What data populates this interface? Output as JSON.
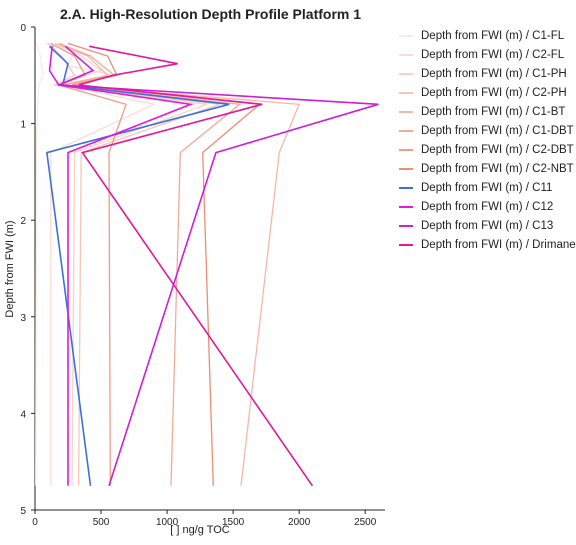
{
  "chart_data": {
    "type": "line",
    "title": "2.A. High-Resolution Depth Profile Platform 1",
    "xlabel": "[ ] ng/g TOC",
    "ylabel": "Depth from FWI (m)",
    "xlim": [
      0,
      2650
    ],
    "ylim": [
      5,
      0
    ],
    "x_ticks": [
      "0",
      "500",
      "1000",
      "1500",
      "2000",
      "2500"
    ],
    "y_ticks": [
      "0",
      "1",
      "2",
      "3",
      "4",
      "5"
    ],
    "grid": false,
    "legend_position": "right",
    "series": [
      {
        "name": "Depth from FWI (m) / C1-FL",
        "color": "#fde9e4",
        "points": [
          [
            10,
            0.17
          ],
          [
            40,
            0.3
          ],
          [
            60,
            0.5
          ],
          [
            30,
            0.6
          ],
          [
            20,
            0.8
          ],
          [
            10,
            1.3
          ],
          [
            5,
            4.75
          ]
        ]
      },
      {
        "name": "Depth from FWI (m) / C2-FL",
        "color": "#fbdcd4",
        "points": [
          [
            80,
            0.17
          ],
          [
            300,
            0.25
          ],
          [
            250,
            0.4
          ],
          [
            600,
            0.5
          ],
          [
            200,
            0.6
          ],
          [
            900,
            0.8
          ],
          [
            120,
            1.3
          ],
          [
            120,
            4.75
          ]
        ]
      },
      {
        "name": "Depth from FWI (m) / C1-PH",
        "color": "#f9d2c6",
        "points": [
          [
            200,
            0.17
          ],
          [
            350,
            0.3
          ],
          [
            500,
            0.45
          ],
          [
            150,
            0.6
          ],
          [
            1300,
            0.8
          ],
          [
            300,
            1.3
          ],
          [
            280,
            4.75
          ]
        ]
      },
      {
        "name": "Depth from FWI (m) / C2-PH",
        "color": "#f7c6b7",
        "points": [
          [
            100,
            0.17
          ],
          [
            200,
            0.3
          ],
          [
            300,
            0.5
          ],
          [
            150,
            0.6
          ],
          [
            1400,
            0.8
          ],
          [
            350,
            1.3
          ],
          [
            330,
            4.75
          ]
        ]
      },
      {
        "name": "Depth from FWI (m) / C1-BT",
        "color": "#f5b8a7",
        "points": [
          [
            150,
            0.17
          ],
          [
            400,
            0.3
          ],
          [
            550,
            0.5
          ],
          [
            200,
            0.6
          ],
          [
            2000,
            0.8
          ],
          [
            1850,
            1.3
          ],
          [
            1560,
            4.75
          ]
        ]
      },
      {
        "name": "Depth from FWI (m) / C1-DBT",
        "color": "#f2ab98",
        "points": [
          [
            180,
            0.17
          ],
          [
            420,
            0.3
          ],
          [
            600,
            0.5
          ],
          [
            220,
            0.6
          ],
          [
            1550,
            0.8
          ],
          [
            1100,
            1.3
          ],
          [
            1030,
            4.75
          ]
        ]
      },
      {
        "name": "Depth from FWI (m) / C2-DBT",
        "color": "#ef9c88",
        "points": [
          [
            120,
            0.17
          ],
          [
            300,
            0.3
          ],
          [
            380,
            0.5
          ],
          [
            180,
            0.6
          ],
          [
            690,
            0.8
          ],
          [
            560,
            1.3
          ],
          [
            570,
            4.75
          ]
        ]
      },
      {
        "name": "Depth from FWI (m) / C2-NBT",
        "color": "#ec8d78",
        "points": [
          [
            250,
            0.17
          ],
          [
            550,
            0.3
          ],
          [
            620,
            0.5
          ],
          [
            280,
            0.6
          ],
          [
            1700,
            0.8
          ],
          [
            1270,
            1.3
          ],
          [
            1350,
            4.75
          ]
        ]
      },
      {
        "name": "Depth from FWI (m) / C11",
        "color": "#3b6fe0",
        "points": [
          [
            110,
            0.2
          ],
          [
            250,
            0.38
          ],
          [
            210,
            0.6
          ],
          [
            1470,
            0.8
          ],
          [
            90,
            1.3
          ],
          [
            420,
            4.75
          ]
        ]
      },
      {
        "name": "Depth from FWI (m) / C12",
        "color": "#e417e4",
        "points": [
          [
            130,
            0.2
          ],
          [
            110,
            0.45
          ],
          [
            180,
            0.6
          ],
          [
            1180,
            0.8
          ],
          [
            250,
            1.3
          ],
          [
            250,
            4.75
          ]
        ]
      },
      {
        "name": "Depth from FWI (m) / C13",
        "color": "#cc1fd8",
        "points": [
          [
            230,
            0.2
          ],
          [
            440,
            0.45
          ],
          [
            180,
            0.6
          ],
          [
            2600,
            0.8
          ],
          [
            1370,
            1.3
          ],
          [
            560,
            4.75
          ]
        ]
      },
      {
        "name": "Depth from FWI (m) / Drimane",
        "color": "#e0199d",
        "points": [
          [
            410,
            0.2
          ],
          [
            1080,
            0.38
          ],
          [
            590,
            0.5
          ],
          [
            330,
            0.6
          ],
          [
            1720,
            0.8
          ],
          [
            360,
            1.3
          ],
          [
            2100,
            4.75
          ]
        ]
      }
    ]
  }
}
